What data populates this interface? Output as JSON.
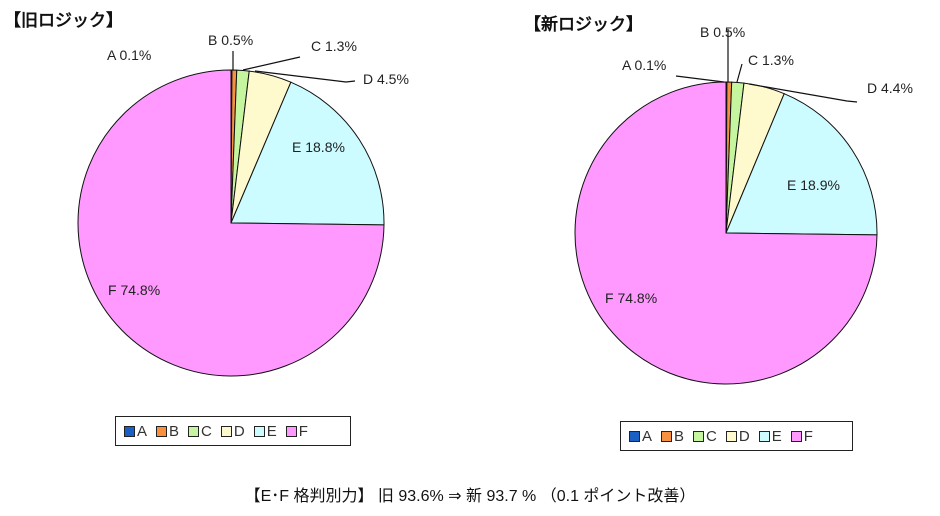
{
  "colors": {
    "A": "#1a5fc4",
    "B": "#f7913f",
    "C": "#c6f5a0",
    "D": "#fffacd",
    "E": "#ccfcff",
    "F": "#ff99ff"
  },
  "left": {
    "title": "【旧ロジック】",
    "labels": {
      "A": "A 0.1%",
      "B": "B 0.5%",
      "C": "C 1.3%",
      "D": "D 4.5%",
      "E": "E 18.8%",
      "F": "F 74.8%"
    }
  },
  "right": {
    "title": "【新ロジック】",
    "labels": {
      "A": "A 0.1%",
      "B": "B 0.5%",
      "C": "C 1.3%",
      "D": "D 4.4%",
      "E": "E 18.9%",
      "F": "F 74.8%"
    }
  },
  "legend": {
    "A": "A",
    "B": "B",
    "C": "C",
    "D": "D",
    "E": "E",
    "F": "F"
  },
  "footer": "【E･F 格判別力】 旧 93.6%  ⇒  新 93.7  % （0.1 ポイント改善）",
  "chart_data": [
    {
      "type": "pie",
      "title": "【旧ロジック】",
      "categories": [
        "A",
        "B",
        "C",
        "D",
        "E",
        "F"
      ],
      "values": [
        0.1,
        0.5,
        1.3,
        4.5,
        18.8,
        74.8
      ],
      "legend_position": "bottom"
    },
    {
      "type": "pie",
      "title": "【新ロジック】",
      "categories": [
        "A",
        "B",
        "C",
        "D",
        "E",
        "F"
      ],
      "values": [
        0.1,
        0.5,
        1.3,
        4.4,
        18.9,
        74.8
      ],
      "legend_position": "bottom"
    }
  ]
}
